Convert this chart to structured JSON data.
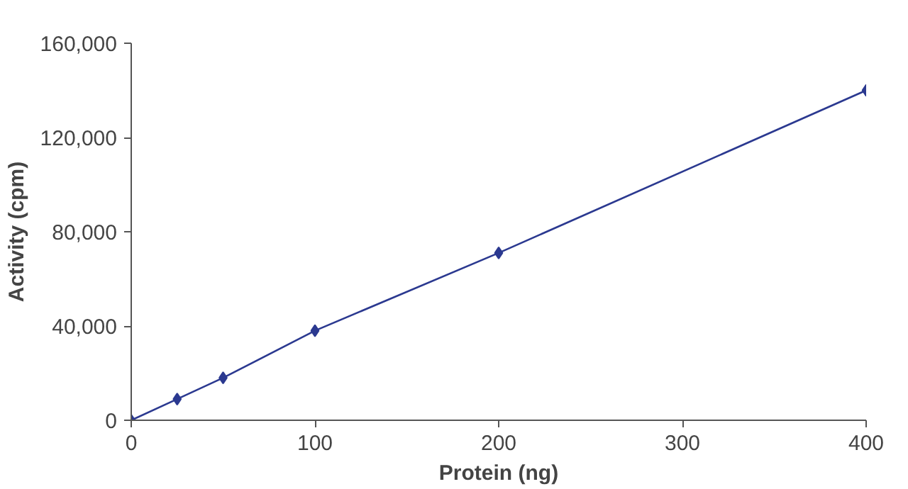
{
  "chart_data": {
    "type": "line",
    "xlabel": "Protein (ng)",
    "ylabel": "Activity (cpm)",
    "x": [
      0,
      25,
      50,
      100,
      200,
      400
    ],
    "series": [
      {
        "color": "#2b3990",
        "values": [
          0,
          9000,
          18000,
          38000,
          71000,
          140000
        ]
      }
    ],
    "xlim": [
      0,
      400
    ],
    "xticks": [
      0,
      100,
      200,
      300,
      400
    ],
    "ylim": [
      0,
      160000
    ],
    "yticks": [
      {
        "value": 0,
        "label": "0"
      },
      {
        "value": 40000,
        "label": "40,000"
      },
      {
        "value": 80000,
        "label": "80,000"
      },
      {
        "value": 120000,
        "label": "120,000"
      },
      {
        "value": 160000,
        "label": "160,000"
      }
    ],
    "grid": false,
    "marker": "diamond",
    "line_style": "solid"
  }
}
